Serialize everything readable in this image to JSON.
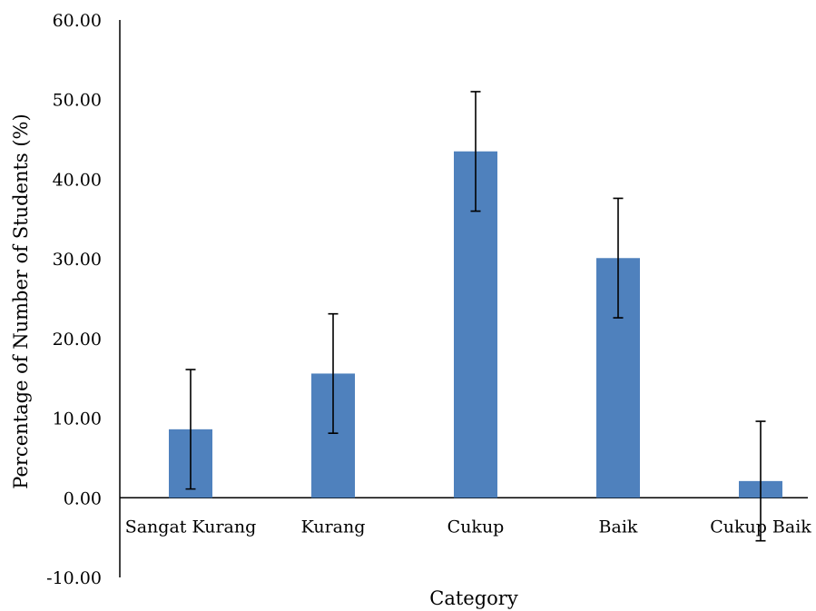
{
  "chart_data": {
    "type": "bar",
    "categories": [
      "Sangat Kurang",
      "Kurang",
      "Cukup",
      "Baik",
      "Cukup Baik"
    ],
    "values": [
      8.6,
      15.6,
      43.5,
      30.1,
      2.1
    ],
    "error": [
      7.5,
      7.5,
      7.5,
      7.5,
      7.5
    ],
    "xlabel": "Category",
    "ylabel": "Percentage of Number of Students (%)",
    "ylim": [
      -10,
      60
    ],
    "yticks": [
      "-10.00",
      "0.00",
      "10.00",
      "20.00",
      "30.00",
      "40.00",
      "50.00",
      "60.00"
    ],
    "ytick_values": [
      -10,
      0,
      10,
      20,
      30,
      40,
      50,
      60
    ],
    "bar_color": "#4f81bd",
    "error_bars": true,
    "grid": false,
    "legend": "none"
  }
}
